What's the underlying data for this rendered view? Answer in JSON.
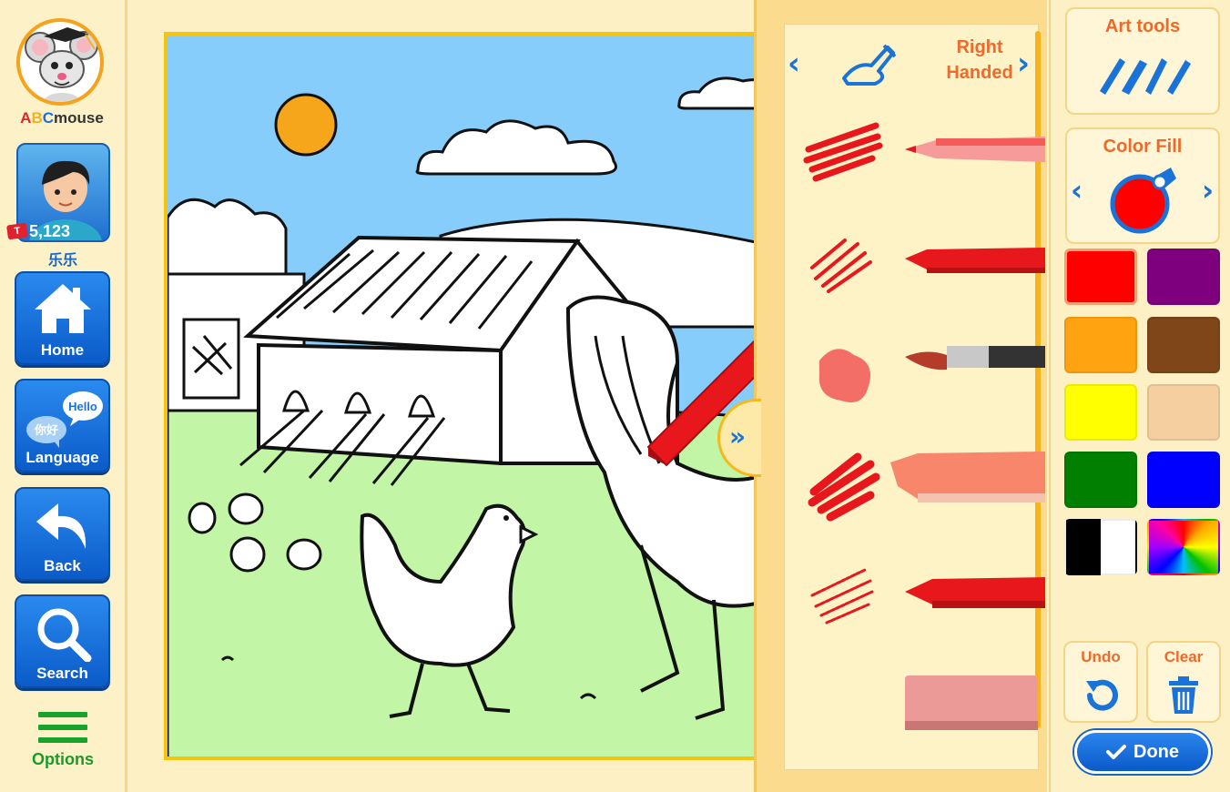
{
  "sidebar": {
    "logo_text": {
      "a": "A",
      "b": "B",
      "c": "C",
      "rest": "mouse"
    },
    "user": {
      "points": "5,123",
      "ticket_icon": "ticket-icon",
      "name": "乐乐"
    },
    "nav": [
      {
        "label": "Home",
        "icon": "house-icon"
      },
      {
        "label": "Language",
        "icon": "speech-bubbles-icon",
        "bubble_en": "Hello",
        "bubble_zh": "你好"
      },
      {
        "label": "Back",
        "icon": "back-arrow-icon"
      },
      {
        "label": "Search",
        "icon": "magnifier-icon"
      }
    ],
    "options_label": "Options"
  },
  "tool_panel": {
    "hand_line1": "Right",
    "hand_line2": "Handed",
    "tools": [
      "crayon",
      "pencil",
      "marker",
      "paintbrush",
      "highlighter",
      "thick-crayon",
      "eraser"
    ],
    "active_tool": "marker",
    "tool_color": "#e8171c"
  },
  "color_panel": {
    "art_tools_title": "Art tools",
    "color_fill_title": "Color Fill",
    "selected_color": "#ff0000",
    "swatches": [
      "#ff0000",
      "#7f007f",
      "#ffa310",
      "#7f4719",
      "#ffff00",
      "#f5cfa0",
      "#007f00",
      "#0000ff",
      "black-white",
      "rainbow"
    ],
    "undo_label": "Undo",
    "clear_label": "Clear",
    "done_label": "Done"
  },
  "colors": {
    "accent_blue": "#1a73d8",
    "title_orange": "#ee6a2a",
    "panel_yellow": "#fbdc8e"
  }
}
